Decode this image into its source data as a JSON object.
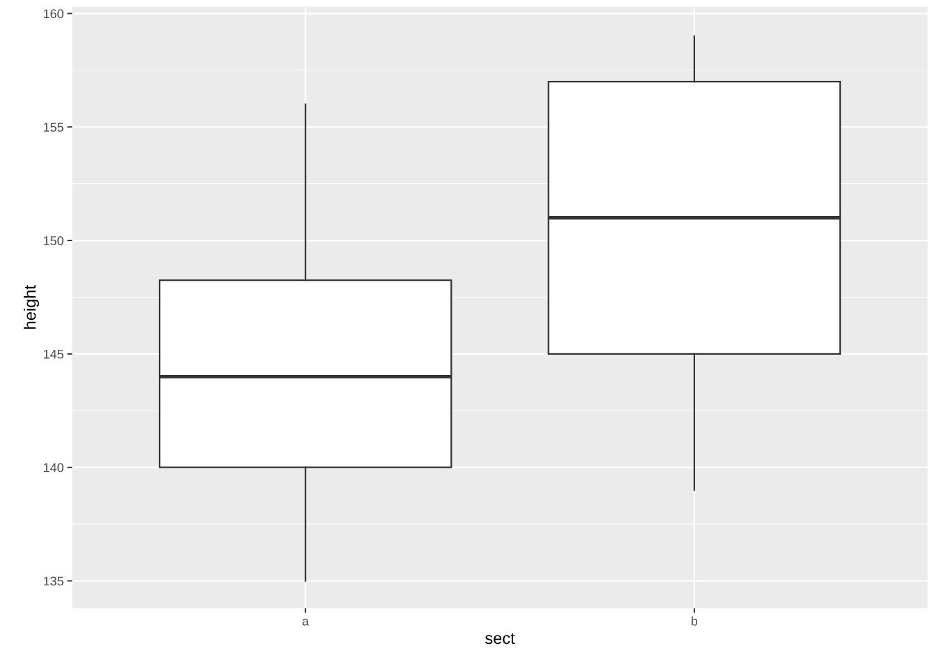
{
  "chart_data": {
    "type": "box",
    "xlabel": "sect",
    "ylabel": "height",
    "categories": [
      "a",
      "b"
    ],
    "boxes": [
      {
        "low": 135,
        "q1": 140,
        "median": 144,
        "q3": 148.25,
        "high": 156
      },
      {
        "low": 139,
        "q1": 145,
        "median": 151,
        "q3": 157,
        "high": 159
      }
    ],
    "ylim": [
      133.8,
      160.3
    ],
    "yticks": [
      135,
      140,
      145,
      150,
      155,
      160
    ],
    "grid": true,
    "legend": false
  }
}
